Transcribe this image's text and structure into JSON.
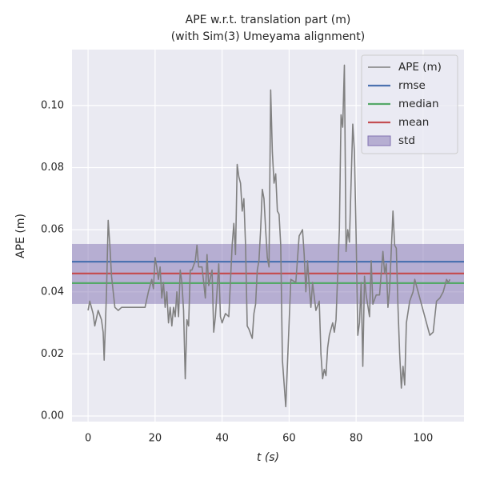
{
  "chart_data": {
    "type": "line",
    "title": "APE w.r.t. translation part (m)",
    "subtitle": "(with Sim(3) Umeyama alignment)",
    "xlabel": "t (s)",
    "ylabel": "APE (m)",
    "xlim": [
      -4.8,
      112.2
    ],
    "ylim": [
      -0.0018,
      0.118
    ],
    "xticks": [
      0,
      20,
      40,
      60,
      80,
      100
    ],
    "yticks": [
      {
        "value": 0,
        "label": "0.00"
      },
      {
        "value": 0.02,
        "label": "0.02"
      },
      {
        "value": 0.04,
        "label": "0.04"
      },
      {
        "value": 0.06,
        "label": "0.06"
      },
      {
        "value": 0.08,
        "label": "0.08"
      },
      {
        "value": 0.1,
        "label": "0.10"
      }
    ],
    "grid": true,
    "legend": "upper right",
    "x": [
      0,
      0.5,
      1.5,
      2,
      3,
      4,
      4.5,
      4.8,
      5.5,
      6,
      6.5,
      7,
      8,
      9,
      10,
      17,
      18,
      19,
      19.5,
      20,
      20.5,
      21,
      21.5,
      22,
      22.5,
      23,
      23.5,
      24,
      24.5,
      25,
      25.5,
      26,
      26.5,
      27,
      27.5,
      28,
      28.5,
      29,
      29.5,
      30,
      30.5,
      31,
      32,
      32.5,
      33,
      34,
      35,
      35.5,
      36,
      37,
      37.5,
      38,
      39,
      39.5,
      40,
      41,
      42,
      43,
      43.5,
      44,
      44.5,
      45,
      45.5,
      46,
      46.5,
      47,
      47.5,
      48,
      49,
      49.5,
      50,
      50.5,
      51,
      51.5,
      52,
      52.5,
      53,
      53.5,
      54,
      54.5,
      55,
      55.5,
      56,
      56.5,
      57,
      57.5,
      58,
      59,
      60,
      60.5,
      62,
      63,
      64,
      64.5,
      65,
      65.5,
      66,
      66.5,
      67,
      68,
      69,
      69.5,
      70,
      70.5,
      71,
      71.5,
      72,
      73,
      73.5,
      74,
      75,
      75.5,
      76,
      76.5,
      77,
      77.5,
      78,
      78.5,
      79,
      79.5,
      80,
      80.5,
      81,
      81.5,
      82,
      82.5,
      83,
      84,
      84.5,
      85,
      86,
      87,
      88,
      88.5,
      89,
      89.5,
      90,
      91,
      91.5,
      92,
      92.5,
      93,
      93.5,
      94,
      94.5,
      95,
      96,
      97,
      97.5,
      98,
      99,
      100,
      101,
      102,
      103,
      104,
      105,
      106,
      107,
      107.5,
      108
    ],
    "series": [
      {
        "name": "APE (m)",
        "color": "#808080",
        "values": [
          0.034,
          0.037,
          0.033,
          0.029,
          0.034,
          0.031,
          0.027,
          0.018,
          0.04,
          0.063,
          0.055,
          0.045,
          0.035,
          0.034,
          0.035,
          0.035,
          0.04,
          0.044,
          0.041,
          0.051,
          0.048,
          0.044,
          0.048,
          0.038,
          0.043,
          0.035,
          0.04,
          0.03,
          0.035,
          0.029,
          0.035,
          0.032,
          0.04,
          0.032,
          0.047,
          0.043,
          0.034,
          0.012,
          0.031,
          0.029,
          0.047,
          0.047,
          0.05,
          0.055,
          0.048,
          0.048,
          0.038,
          0.052,
          0.042,
          0.047,
          0.027,
          0.032,
          0.049,
          0.032,
          0.03,
          0.033,
          0.032,
          0.055,
          0.062,
          0.052,
          0.081,
          0.077,
          0.075,
          0.066,
          0.07,
          0.055,
          0.029,
          0.028,
          0.025,
          0.033,
          0.036,
          0.047,
          0.05,
          0.06,
          0.073,
          0.07,
          0.06,
          0.051,
          0.048,
          0.105,
          0.085,
          0.075,
          0.078,
          0.066,
          0.065,
          0.055,
          0.018,
          0.003,
          0.03,
          0.044,
          0.043,
          0.058,
          0.06,
          0.052,
          0.04,
          0.05,
          0.042,
          0.035,
          0.043,
          0.034,
          0.037,
          0.02,
          0.012,
          0.015,
          0.013,
          0.022,
          0.026,
          0.03,
          0.027,
          0.031,
          0.06,
          0.097,
          0.093,
          0.113,
          0.053,
          0.06,
          0.056,
          0.075,
          0.094,
          0.085,
          0.058,
          0.026,
          0.03,
          0.043,
          0.016,
          0.045,
          0.039,
          0.032,
          0.05,
          0.036,
          0.039,
          0.039,
          0.053,
          0.046,
          0.049,
          0.035,
          0.041,
          0.066,
          0.055,
          0.054,
          0.035,
          0.02,
          0.009,
          0.016,
          0.01,
          0.03,
          0.037,
          0.04,
          0.044,
          0.042,
          0.038,
          0.034,
          0.03,
          0.026,
          0.027,
          0.037,
          0.038,
          0.04,
          0.044,
          0.043,
          0.044
        ]
      }
    ],
    "stats": [
      {
        "name": "rmse",
        "color": "#4c72b0",
        "value": 0.0497
      },
      {
        "name": "median",
        "color": "#55a868",
        "value": 0.0428
      },
      {
        "name": "mean",
        "color": "#c44e52",
        "value": 0.0459
      }
    ],
    "std": {
      "name": "std",
      "color": "#8172b2",
      "values": [
        0.0361,
        0.0554
      ]
    }
  }
}
